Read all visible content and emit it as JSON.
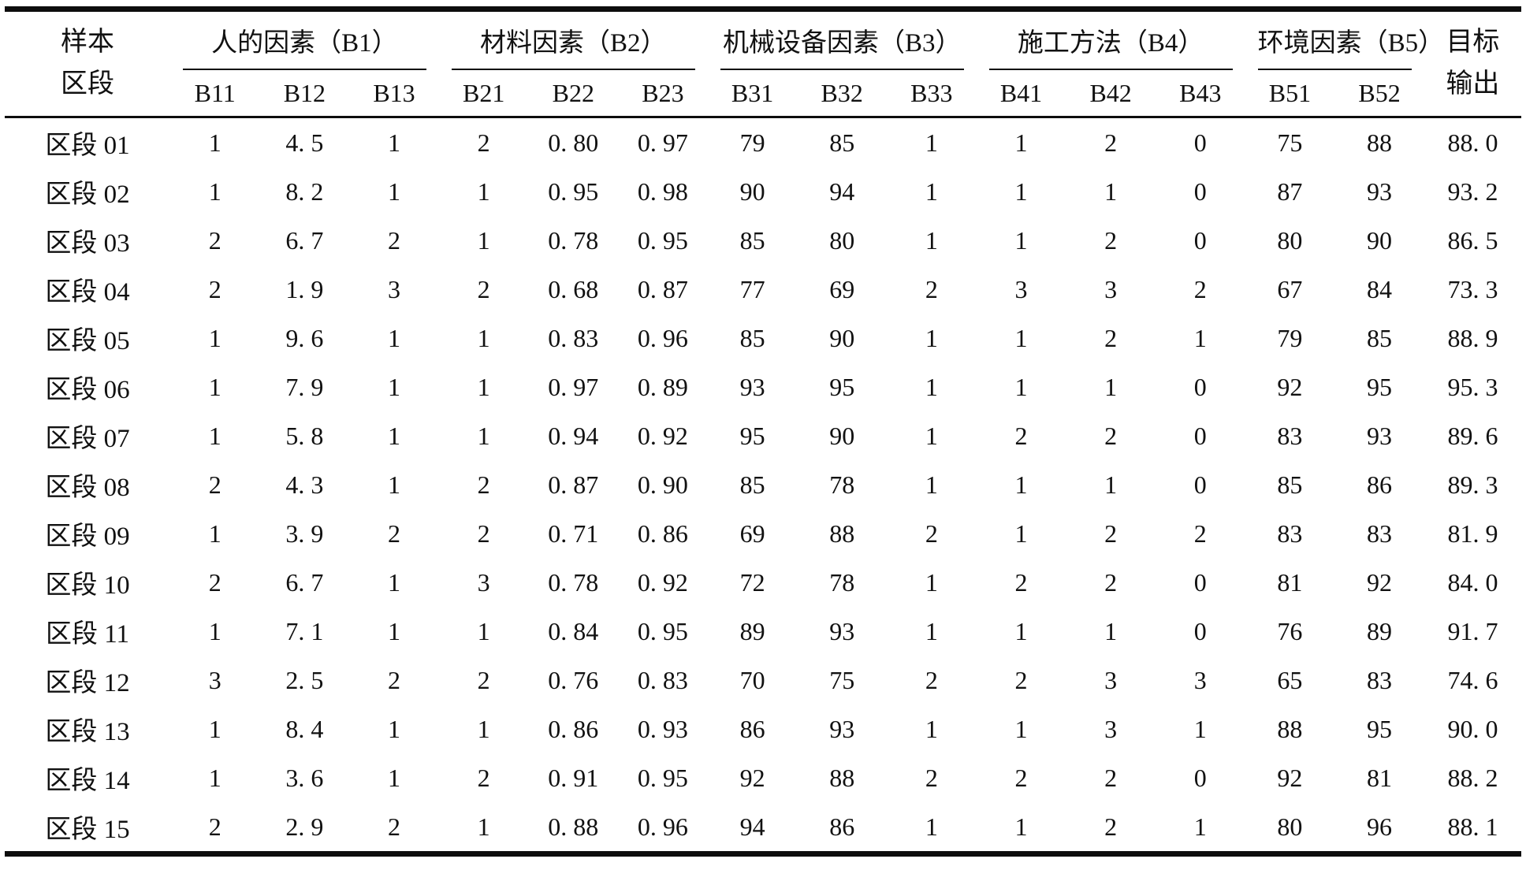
{
  "table": {
    "row_header": {
      "line1": "样本",
      "line2": "区段"
    },
    "target_header": {
      "line1": "目标",
      "line2": "输出"
    },
    "groups": [
      {
        "label": "人的因素（B1）",
        "cols": [
          "B11",
          "B12",
          "B13"
        ]
      },
      {
        "label": "材料因素（B2）",
        "cols": [
          "B21",
          "B22",
          "B23"
        ]
      },
      {
        "label": "机械设备因素（B3）",
        "cols": [
          "B31",
          "B32",
          "B33"
        ]
      },
      {
        "label": "施工方法（B4）",
        "cols": [
          "B41",
          "B42",
          "B43"
        ]
      },
      {
        "label": "环境因素（B5）",
        "cols": [
          "B51",
          "B52"
        ]
      }
    ],
    "rows": [
      {
        "label": "区段 01",
        "values": [
          "1",
          "4. 5",
          "1",
          "2",
          "0. 80",
          "0. 97",
          "79",
          "85",
          "1",
          "1",
          "2",
          "0",
          "75",
          "88",
          "88. 0"
        ]
      },
      {
        "label": "区段 02",
        "values": [
          "1",
          "8. 2",
          "1",
          "1",
          "0. 95",
          "0. 98",
          "90",
          "94",
          "1",
          "1",
          "1",
          "0",
          "87",
          "93",
          "93. 2"
        ]
      },
      {
        "label": "区段 03",
        "values": [
          "2",
          "6. 7",
          "2",
          "1",
          "0. 78",
          "0. 95",
          "85",
          "80",
          "1",
          "1",
          "2",
          "0",
          "80",
          "90",
          "86. 5"
        ]
      },
      {
        "label": "区段 04",
        "values": [
          "2",
          "1. 9",
          "3",
          "2",
          "0. 68",
          "0. 87",
          "77",
          "69",
          "2",
          "3",
          "3",
          "2",
          "67",
          "84",
          "73. 3"
        ]
      },
      {
        "label": "区段 05",
        "values": [
          "1",
          "9. 6",
          "1",
          "1",
          "0. 83",
          "0. 96",
          "85",
          "90",
          "1",
          "1",
          "2",
          "1",
          "79",
          "85",
          "88. 9"
        ]
      },
      {
        "label": "区段 06",
        "values": [
          "1",
          "7. 9",
          "1",
          "1",
          "0. 97",
          "0. 89",
          "93",
          "95",
          "1",
          "1",
          "1",
          "0",
          "92",
          "95",
          "95. 3"
        ]
      },
      {
        "label": "区段 07",
        "values": [
          "1",
          "5. 8",
          "1",
          "1",
          "0. 94",
          "0. 92",
          "95",
          "90",
          "1",
          "2",
          "2",
          "0",
          "83",
          "93",
          "89. 6"
        ]
      },
      {
        "label": "区段 08",
        "values": [
          "2",
          "4. 3",
          "1",
          "2",
          "0. 87",
          "0. 90",
          "85",
          "78",
          "1",
          "1",
          "1",
          "0",
          "85",
          "86",
          "89. 3"
        ]
      },
      {
        "label": "区段 09",
        "values": [
          "1",
          "3. 9",
          "2",
          "2",
          "0. 71",
          "0. 86",
          "69",
          "88",
          "2",
          "1",
          "2",
          "2",
          "83",
          "83",
          "81. 9"
        ]
      },
      {
        "label": "区段 10",
        "values": [
          "2",
          "6. 7",
          "1",
          "3",
          "0. 78",
          "0. 92",
          "72",
          "78",
          "1",
          "2",
          "2",
          "0",
          "81",
          "92",
          "84. 0"
        ]
      },
      {
        "label": "区段 11",
        "values": [
          "1",
          "7. 1",
          "1",
          "1",
          "0. 84",
          "0. 95",
          "89",
          "93",
          "1",
          "1",
          "1",
          "0",
          "76",
          "89",
          "91. 7"
        ]
      },
      {
        "label": "区段 12",
        "values": [
          "3",
          "2. 5",
          "2",
          "2",
          "0. 76",
          "0. 83",
          "70",
          "75",
          "2",
          "2",
          "3",
          "3",
          "65",
          "83",
          "74. 6"
        ]
      },
      {
        "label": "区段 13",
        "values": [
          "1",
          "8. 4",
          "1",
          "1",
          "0. 86",
          "0. 93",
          "86",
          "93",
          "1",
          "1",
          "3",
          "1",
          "88",
          "95",
          "90. 0"
        ]
      },
      {
        "label": "区段 14",
        "values": [
          "1",
          "3. 6",
          "1",
          "2",
          "0. 91",
          "0. 95",
          "92",
          "88",
          "2",
          "2",
          "2",
          "0",
          "92",
          "81",
          "88. 2"
        ]
      },
      {
        "label": "区段 15",
        "values": [
          "2",
          "2. 9",
          "2",
          "1",
          "0. 88",
          "0. 96",
          "94",
          "86",
          "1",
          "1",
          "2",
          "1",
          "80",
          "96",
          "88. 1"
        ]
      }
    ],
    "colors": {
      "rule": "#0d0d0d",
      "text": "#111111",
      "background": "#ffffff"
    }
  }
}
